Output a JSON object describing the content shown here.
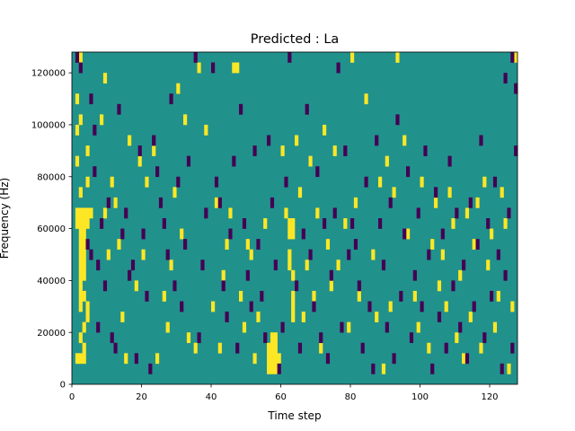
{
  "chart_data": {
    "type": "heatmap",
    "title": "Predicted : La",
    "xlabel": "Time step",
    "ylabel": "Frequency (Hz)",
    "xlim": [
      0,
      128
    ],
    "ylim": [
      0,
      128000
    ],
    "xticks": [
      0,
      20,
      40,
      60,
      80,
      100,
      120
    ],
    "yticks": [
      0,
      20000,
      40000,
      60000,
      80000,
      100000,
      120000
    ],
    "xtick_labels": [
      "0",
      "20",
      "40",
      "60",
      "80",
      "100",
      "120"
    ],
    "ytick_labels": [
      "0",
      "20000",
      "40000",
      "60000",
      "80000",
      "100000",
      "120000"
    ],
    "grid": false,
    "colormap": "viridis",
    "levels": [
      0,
      1,
      2
    ],
    "level_colors": [
      "#440154",
      "#21918c",
      "#fde725"
    ],
    "background_level": 1,
    "cell_width": 1,
    "cell_height": 4000,
    "cells": [
      [
        1,
        8000,
        2
      ],
      [
        2,
        8000,
        2
      ],
      [
        3,
        8000,
        2
      ],
      [
        1,
        60000,
        2
      ],
      [
        2,
        60000,
        2
      ],
      [
        3,
        60000,
        2
      ],
      [
        4,
        60000,
        2
      ],
      [
        1,
        64000,
        2
      ],
      [
        2,
        64000,
        2
      ],
      [
        3,
        64000,
        2
      ],
      [
        4,
        64000,
        2
      ],
      [
        5,
        64000,
        2
      ],
      [
        2,
        28000,
        2
      ],
      [
        2,
        32000,
        2
      ],
      [
        2,
        36000,
        2
      ],
      [
        2,
        40000,
        2
      ],
      [
        2,
        44000,
        2
      ],
      [
        2,
        48000,
        2
      ],
      [
        2,
        52000,
        2
      ],
      [
        2,
        56000,
        2
      ],
      [
        3,
        32000,
        2
      ],
      [
        3,
        40000,
        2
      ],
      [
        3,
        44000,
        2
      ],
      [
        3,
        48000,
        2
      ],
      [
        3,
        52000,
        2
      ],
      [
        3,
        56000,
        2
      ],
      [
        2,
        16000,
        2
      ],
      [
        3,
        12000,
        2
      ],
      [
        3,
        20000,
        2
      ],
      [
        1,
        96000,
        2
      ],
      [
        1,
        84000,
        2
      ],
      [
        1,
        108000,
        2
      ],
      [
        2,
        72000,
        2
      ],
      [
        2,
        100000,
        2
      ],
      [
        2,
        124000,
        2
      ],
      [
        4,
        28000,
        2
      ],
      [
        4,
        24000,
        2
      ],
      [
        4,
        88000,
        2
      ],
      [
        4,
        76000,
        2
      ],
      [
        8,
        100000,
        2
      ],
      [
        9,
        116000,
        2
      ],
      [
        9,
        64000,
        2
      ],
      [
        10,
        48000,
        2
      ],
      [
        11,
        76000,
        2
      ],
      [
        12,
        68000,
        2
      ],
      [
        13,
        52000,
        2
      ],
      [
        14,
        24000,
        2
      ],
      [
        15,
        8000,
        2
      ],
      [
        16,
        92000,
        2
      ],
      [
        18,
        36000,
        2
      ],
      [
        19,
        84000,
        2
      ],
      [
        20,
        48000,
        2
      ],
      [
        21,
        76000,
        2
      ],
      [
        23,
        88000,
        2
      ],
      [
        24,
        8000,
        2
      ],
      [
        26,
        32000,
        2
      ],
      [
        27,
        20000,
        2
      ],
      [
        28,
        44000,
        2
      ],
      [
        29,
        72000,
        2
      ],
      [
        30,
        112000,
        2
      ],
      [
        31,
        56000,
        2
      ],
      [
        32,
        100000,
        2
      ],
      [
        33,
        16000,
        2
      ],
      [
        35,
        12000,
        2
      ],
      [
        36,
        120000,
        2
      ],
      [
        38,
        96000,
        2
      ],
      [
        40,
        28000,
        2
      ],
      [
        41,
        68000,
        2
      ],
      [
        42,
        12000,
        2
      ],
      [
        43,
        40000,
        2
      ],
      [
        44,
        52000,
        2
      ],
      [
        45,
        64000,
        2
      ],
      [
        46,
        120000,
        2
      ],
      [
        47,
        120000,
        2
      ],
      [
        48,
        32000,
        2
      ],
      [
        49,
        20000,
        2
      ],
      [
        50,
        52000,
        2
      ],
      [
        51,
        48000,
        2
      ],
      [
        52,
        8000,
        2
      ],
      [
        53,
        24000,
        2
      ],
      [
        55,
        60000,
        2
      ],
      [
        56,
        4000,
        2
      ],
      [
        56,
        8000,
        2
      ],
      [
        56,
        12000,
        2
      ],
      [
        57,
        4000,
        2
      ],
      [
        57,
        8000,
        2
      ],
      [
        57,
        12000,
        2
      ],
      [
        57,
        16000,
        2
      ],
      [
        58,
        4000,
        2
      ],
      [
        58,
        8000,
        2
      ],
      [
        58,
        12000,
        2
      ],
      [
        58,
        16000,
        2
      ],
      [
        59,
        8000,
        2
      ],
      [
        60,
        88000,
        2
      ],
      [
        61,
        64000,
        2
      ],
      [
        62,
        56000,
        2
      ],
      [
        62,
        60000,
        2
      ],
      [
        62,
        48000,
        2
      ],
      [
        62,
        44000,
        2
      ],
      [
        63,
        56000,
        2
      ],
      [
        63,
        60000,
        2
      ],
      [
        63,
        40000,
        2
      ],
      [
        63,
        32000,
        2
      ],
      [
        63,
        28000,
        2
      ],
      [
        63,
        24000,
        2
      ],
      [
        64,
        92000,
        2
      ],
      [
        65,
        72000,
        2
      ],
      [
        66,
        24000,
        2
      ],
      [
        67,
        44000,
        2
      ],
      [
        68,
        84000,
        2
      ],
      [
        69,
        32000,
        2
      ],
      [
        70,
        64000,
        2
      ],
      [
        71,
        12000,
        2
      ],
      [
        72,
        96000,
        2
      ],
      [
        73,
        52000,
        2
      ],
      [
        74,
        36000,
        2
      ],
      [
        75,
        88000,
        2
      ],
      [
        76,
        44000,
        2
      ],
      [
        78,
        60000,
        2
      ],
      [
        79,
        20000,
        2
      ],
      [
        80,
        124000,
        2
      ],
      [
        81,
        68000,
        2
      ],
      [
        82,
        32000,
        2
      ],
      [
        84,
        108000,
        2
      ],
      [
        86,
        48000,
        2
      ],
      [
        87,
        24000,
        2
      ],
      [
        88,
        76000,
        2
      ],
      [
        89,
        4000,
        2
      ],
      [
        90,
        84000,
        2
      ],
      [
        91,
        28000,
        2
      ],
      [
        92,
        72000,
        2
      ],
      [
        93,
        124000,
        2
      ],
      [
        95,
        92000,
        2
      ],
      [
        96,
        56000,
        2
      ],
      [
        98,
        32000,
        2
      ],
      [
        99,
        20000,
        2
      ],
      [
        100,
        76000,
        2
      ],
      [
        102,
        12000,
        2
      ],
      [
        103,
        52000,
        2
      ],
      [
        104,
        68000,
        2
      ],
      [
        105,
        36000,
        2
      ],
      [
        106,
        48000,
        2
      ],
      [
        107,
        28000,
        2
      ],
      [
        108,
        72000,
        2
      ],
      [
        109,
        60000,
        2
      ],
      [
        110,
        16000,
        2
      ],
      [
        111,
        40000,
        2
      ],
      [
        112,
        8000,
        2
      ],
      [
        113,
        64000,
        2
      ],
      [
        114,
        24000,
        2
      ],
      [
        115,
        52000,
        2
      ],
      [
        116,
        68000,
        2
      ],
      [
        117,
        12000,
        2
      ],
      [
        118,
        76000,
        2
      ],
      [
        119,
        44000,
        2
      ],
      [
        120,
        56000,
        2
      ],
      [
        121,
        20000,
        2
      ],
      [
        122,
        32000,
        2
      ],
      [
        123,
        72000,
        2
      ],
      [
        124,
        60000,
        2
      ],
      [
        125,
        4000,
        2
      ],
      [
        126,
        28000,
        2
      ],
      [
        127,
        124000,
        2
      ],
      [
        1,
        124000,
        0
      ],
      [
        2,
        120000,
        0
      ],
      [
        5,
        108000,
        0
      ],
      [
        6,
        96000,
        0
      ],
      [
        4,
        52000,
        0
      ],
      [
        5,
        48000,
        0
      ],
      [
        6,
        80000,
        0
      ],
      [
        7,
        20000,
        0
      ],
      [
        7,
        44000,
        0
      ],
      [
        8,
        60000,
        0
      ],
      [
        9,
        36000,
        0
      ],
      [
        10,
        68000,
        0
      ],
      [
        11,
        16000,
        0
      ],
      [
        12,
        12000,
        0
      ],
      [
        13,
        104000,
        0
      ],
      [
        14,
        56000,
        0
      ],
      [
        15,
        64000,
        0
      ],
      [
        16,
        40000,
        0
      ],
      [
        17,
        44000,
        0
      ],
      [
        18,
        8000,
        0
      ],
      [
        19,
        88000,
        0
      ],
      [
        20,
        56000,
        0
      ],
      [
        21,
        32000,
        0
      ],
      [
        22,
        4000,
        0
      ],
      [
        23,
        92000,
        0
      ],
      [
        24,
        80000,
        0
      ],
      [
        25,
        68000,
        0
      ],
      [
        26,
        60000,
        0
      ],
      [
        27,
        48000,
        0
      ],
      [
        28,
        108000,
        0
      ],
      [
        29,
        36000,
        0
      ],
      [
        30,
        76000,
        0
      ],
      [
        31,
        28000,
        0
      ],
      [
        32,
        52000,
        0
      ],
      [
        33,
        84000,
        0
      ],
      [
        35,
        124000,
        0
      ],
      [
        36,
        16000,
        0
      ],
      [
        37,
        44000,
        0
      ],
      [
        38,
        64000,
        0
      ],
      [
        40,
        120000,
        0
      ],
      [
        41,
        76000,
        0
      ],
      [
        42,
        68000,
        0
      ],
      [
        43,
        36000,
        0
      ],
      [
        44,
        24000,
        0
      ],
      [
        45,
        56000,
        0
      ],
      [
        46,
        84000,
        0
      ],
      [
        47,
        12000,
        0
      ],
      [
        48,
        104000,
        0
      ],
      [
        49,
        60000,
        0
      ],
      [
        50,
        40000,
        0
      ],
      [
        51,
        28000,
        0
      ],
      [
        52,
        88000,
        0
      ],
      [
        53,
        52000,
        0
      ],
      [
        54,
        32000,
        0
      ],
      [
        55,
        16000,
        0
      ],
      [
        56,
        92000,
        0
      ],
      [
        57,
        68000,
        0
      ],
      [
        58,
        44000,
        0
      ],
      [
        59,
        4000,
        0
      ],
      [
        60,
        20000,
        0
      ],
      [
        61,
        76000,
        0
      ],
      [
        62,
        124000,
        0
      ],
      [
        64,
        36000,
        0
      ],
      [
        65,
        12000,
        0
      ],
      [
        66,
        56000,
        0
      ],
      [
        67,
        104000,
        0
      ],
      [
        68,
        48000,
        0
      ],
      [
        69,
        28000,
        0
      ],
      [
        70,
        80000,
        0
      ],
      [
        71,
        16000,
        0
      ],
      [
        72,
        60000,
        0
      ],
      [
        73,
        8000,
        0
      ],
      [
        74,
        40000,
        0
      ],
      [
        75,
        64000,
        0
      ],
      [
        76,
        120000,
        0
      ],
      [
        77,
        20000,
        0
      ],
      [
        78,
        88000,
        0
      ],
      [
        79,
        48000,
        0
      ],
      [
        80,
        60000,
        0
      ],
      [
        81,
        52000,
        0
      ],
      [
        82,
        36000,
        0
      ],
      [
        83,
        12000,
        0
      ],
      [
        84,
        76000,
        0
      ],
      [
        85,
        28000,
        0
      ],
      [
        86,
        4000,
        0
      ],
      [
        87,
        92000,
        0
      ],
      [
        88,
        60000,
        0
      ],
      [
        89,
        44000,
        0
      ],
      [
        90,
        20000,
        0
      ],
      [
        91,
        68000,
        0
      ],
      [
        92,
        8000,
        0
      ],
      [
        93,
        100000,
        0
      ],
      [
        94,
        32000,
        0
      ],
      [
        95,
        56000,
        0
      ],
      [
        96,
        80000,
        0
      ],
      [
        97,
        16000,
        0
      ],
      [
        98,
        40000,
        0
      ],
      [
        99,
        64000,
        0
      ],
      [
        100,
        28000,
        0
      ],
      [
        101,
        88000,
        0
      ],
      [
        102,
        48000,
        0
      ],
      [
        103,
        4000,
        0
      ],
      [
        104,
        72000,
        0
      ],
      [
        105,
        24000,
        0
      ],
      [
        106,
        56000,
        0
      ],
      [
        107,
        12000,
        0
      ],
      [
        108,
        84000,
        0
      ],
      [
        109,
        36000,
        0
      ],
      [
        110,
        64000,
        0
      ],
      [
        111,
        20000,
        0
      ],
      [
        112,
        44000,
        0
      ],
      [
        113,
        8000,
        0
      ],
      [
        114,
        68000,
        0
      ],
      [
        115,
        28000,
        0
      ],
      [
        116,
        52000,
        0
      ],
      [
        117,
        92000,
        0
      ],
      [
        118,
        16000,
        0
      ],
      [
        119,
        60000,
        0
      ],
      [
        120,
        32000,
        0
      ],
      [
        121,
        76000,
        0
      ],
      [
        122,
        48000,
        0
      ],
      [
        123,
        4000,
        0
      ],
      [
        124,
        40000,
        0
      ],
      [
        125,
        64000,
        0
      ],
      [
        126,
        12000,
        0
      ],
      [
        127,
        112000,
        0
      ],
      [
        127,
        88000,
        0
      ],
      [
        126,
        124000,
        0
      ],
      [
        124,
        116000,
        0
      ]
    ]
  }
}
